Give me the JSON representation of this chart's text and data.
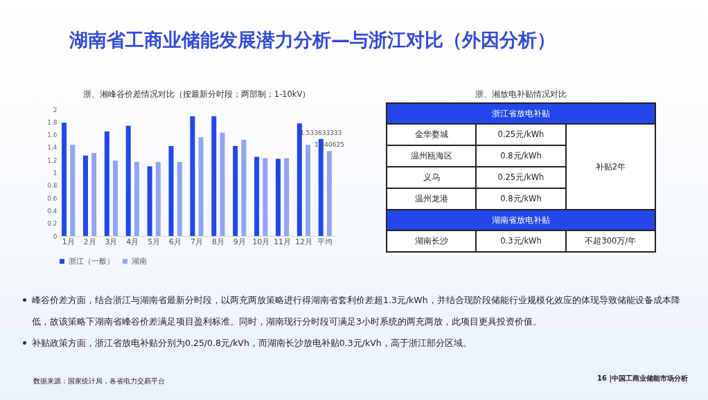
{
  "chart_data": [
    {
      "type": "other",
      "title": "湖南省工商业储能发展潜力分析—与浙江对比（外因分析）",
      "annotations": [
        "峰谷价差方面，结合浙江与湖南省最新分时段，以两充两放策略进行得湖南省套利价差超1.3元/kWh，并结合现阶段储能行业规模化效应的体现导致储能设备成本降低，故该策略下湖南省峰谷价差满足项目盈利标准。同时，湖南现行分时段可满足3小时系统的两充两放，此项目更具投资价值。",
        "补贴政策方面，浙江省放电补贴分别为0.25/0.8元/kVh，而湖南长沙放电补贴0.3元/kVh，高于浙江部分区域。",
        "数据来源：国家统计局，各省电力交易平台",
        "16 |中国工商业储能市场分析"
      ]
    },
    {
      "type": "bar",
      "title": "浙、湘峰谷价差情况对比（按最新分时段；两部制；1-10kV）",
      "categories": [
        "1月",
        "2月",
        "3月",
        "4月",
        "5月",
        "6月",
        "7月",
        "8月",
        "9月",
        "10月",
        "11月",
        "12月",
        "平均"
      ],
      "series": [
        {
          "name": "浙江（一般）",
          "color": "#2347e8",
          "values": [
            1.79,
            1.27,
            1.65,
            1.74,
            1.1,
            1.42,
            1.89,
            1.89,
            1.42,
            1.25,
            1.22,
            1.78,
            1.533633333
          ],
          "value_labels": [
            null,
            null,
            null,
            null,
            null,
            null,
            null,
            null,
            null,
            null,
            null,
            null,
            "1.533633333"
          ]
        },
        {
          "name": "湖南",
          "color": "#94a3f0",
          "values": [
            1.44,
            1.31,
            1.19,
            1.17,
            1.17,
            1.17,
            1.56,
            1.63,
            1.52,
            1.23,
            1.23,
            1.44,
            1.340625
          ],
          "value_labels": [
            null,
            null,
            null,
            null,
            null,
            null,
            null,
            null,
            null,
            null,
            null,
            null,
            "1.340625"
          ]
        }
      ],
      "ylim": [
        0,
        2
      ],
      "yticks": [
        0,
        0.2,
        0.4,
        0.6,
        0.8,
        1,
        1.2,
        1.4,
        1.6,
        1.8,
        2
      ],
      "legend": "bottom"
    },
    {
      "type": "other",
      "title": "浙、湘放电补贴情况对比",
      "annotations": [
        "浙江省放电补贴",
        "金华婺城",
        "0.25元/kWh",
        "补贴2年",
        "温州瓯海区",
        "0.8元/kWh",
        "义乌",
        "0.25元/kWh",
        "温州龙港",
        "0.8元/kWh",
        "湖南省放电补贴",
        "湖南长沙",
        "0.3元/kWh",
        "不超300万/年"
      ]
    }
  ]
}
